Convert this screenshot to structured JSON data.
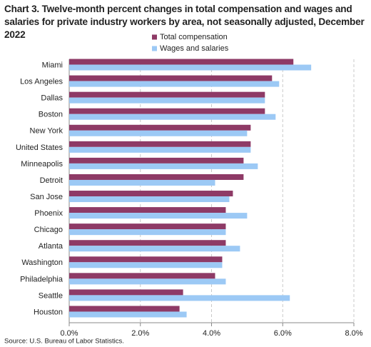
{
  "chart_data": {
    "type": "hbar",
    "title": "Chart 3. Twelve-month percent changes in total compensation and wages and salaries for private industry workers by area, not seasonally adjusted, December 2022",
    "source": "Source: U.S. Bureau of Labor Statistics.",
    "categories": [
      "Miami",
      "Los Angeles",
      "Dallas",
      "Boston",
      "New York",
      "United States",
      "Minneapolis",
      "Detroit",
      "San Jose",
      "Phoenix",
      "Chicago",
      "Atlanta",
      "Washington",
      "Philadelphia",
      "Seattle",
      "Houston"
    ],
    "series": [
      {
        "name": "Total compensation",
        "color": "#8e3a66",
        "values": [
          6.3,
          5.7,
          5.5,
          5.5,
          5.1,
          5.1,
          4.9,
          4.9,
          4.6,
          4.4,
          4.4,
          4.4,
          4.3,
          4.1,
          3.2,
          3.1
        ]
      },
      {
        "name": "Wages and salaries",
        "color": "#9cc9f5",
        "values": [
          6.8,
          5.9,
          5.5,
          5.8,
          5.0,
          5.1,
          5.3,
          4.1,
          4.5,
          5.0,
          4.4,
          4.8,
          4.3,
          4.4,
          6.2,
          3.3
        ]
      }
    ],
    "xlim": [
      0,
      8
    ],
    "xticks": [
      {
        "value": 0,
        "label": "0.0%"
      },
      {
        "value": 2,
        "label": "2.0%"
      },
      {
        "value": 4,
        "label": "4.0%"
      },
      {
        "value": 6,
        "label": "6.0%"
      },
      {
        "value": 8,
        "label": "8.0%"
      }
    ],
    "grid": true
  }
}
